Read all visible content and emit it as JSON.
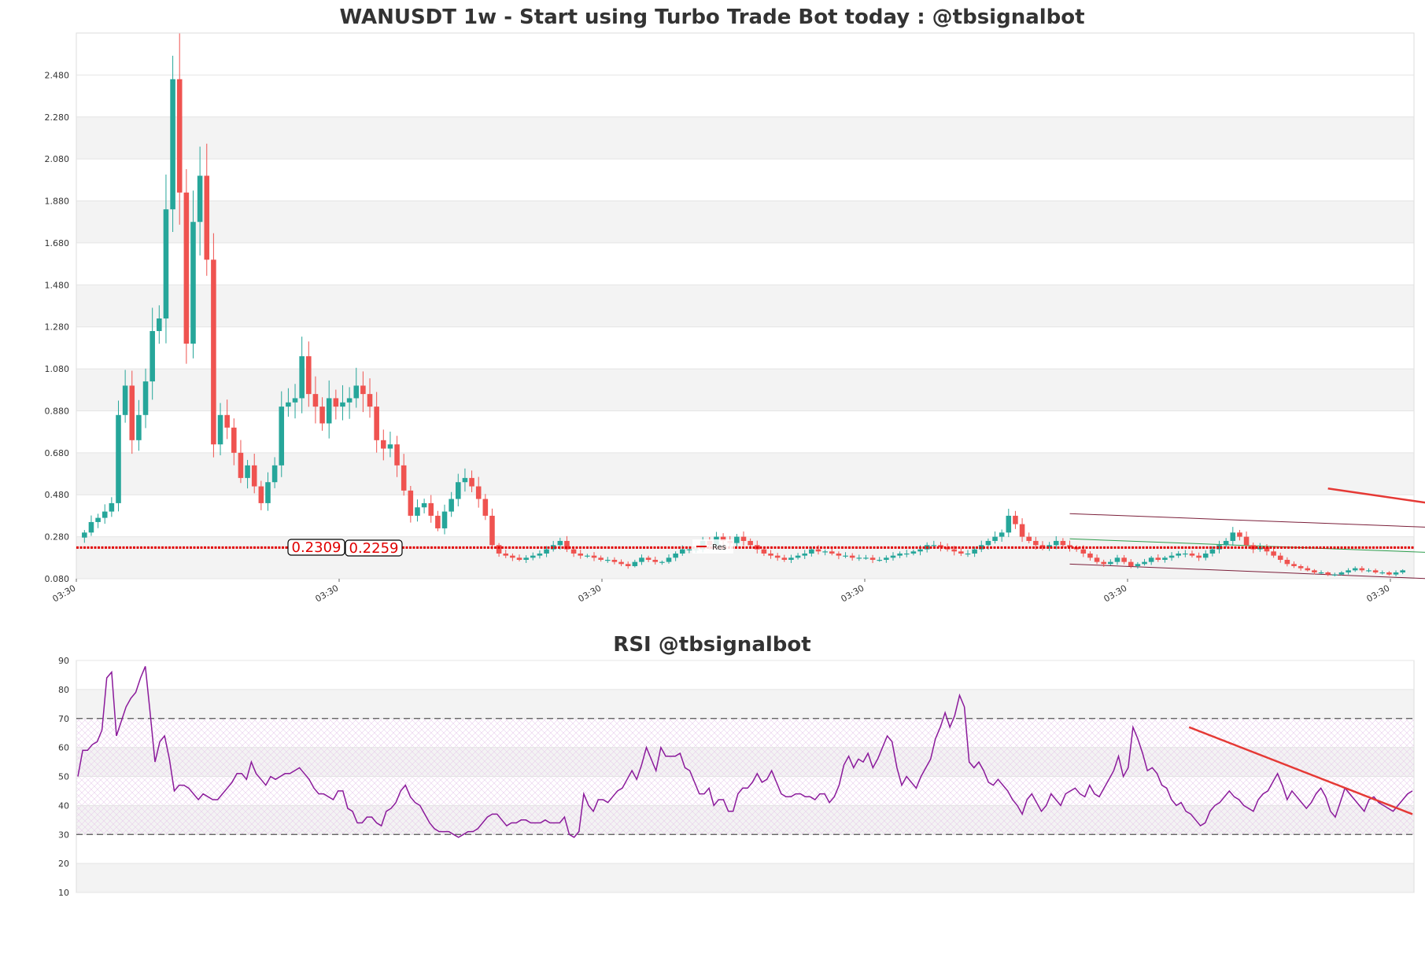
{
  "price_chart": {
    "title": "WANUSDT 1w - Start using Turbo Trade Bot today : @tbsignalbot",
    "y_ticks": [
      "2.480",
      "2.280",
      "2.080",
      "1.880",
      "1.680",
      "1.480",
      "1.280",
      "1.080",
      "0.880",
      "0.680",
      "0.480",
      "0.280",
      "0.080"
    ],
    "x_ticks": [
      "03:30",
      "03:30",
      "03:30",
      "03:30",
      "03:30",
      "03:30"
    ],
    "price_tags": [
      "0.2309",
      "0.2259"
    ],
    "legend_label": "Res",
    "colors": {
      "up": "#26a69a",
      "down": "#ef5350",
      "resistance": "#e00000",
      "channel": "#7b1f3a",
      "mid": "#2e9e4f",
      "trend": "#e53935"
    }
  },
  "rsi_chart": {
    "title": "RSI @tbsignalbot",
    "y_ticks": [
      "90",
      "80",
      "70",
      "60",
      "50",
      "40",
      "30",
      "20",
      "10"
    ],
    "overbought": 70,
    "oversold": 30,
    "colors": {
      "line": "#8b1a9b",
      "trend": "#e53935",
      "guide": "#555555"
    }
  },
  "chart_data": [
    {
      "type": "candlestick",
      "title": "WANUSDT 1w - Start using Turbo Trade Bot today : @tbsignalbot",
      "ylim": [
        0.08,
        2.68
      ],
      "y_ticks": [
        0.08,
        0.28,
        0.48,
        0.68,
        0.88,
        1.08,
        1.28,
        1.48,
        1.68,
        1.88,
        2.08,
        2.28,
        2.48
      ],
      "resistance_levels": [
        0.2309,
        0.2259
      ],
      "legend": [
        "Res"
      ],
      "close": [
        0.3,
        0.35,
        0.37,
        0.4,
        0.44,
        0.86,
        1.0,
        0.74,
        0.86,
        1.02,
        1.26,
        1.32,
        1.84,
        2.46,
        1.92,
        1.2,
        1.78,
        2.0,
        1.6,
        0.72,
        0.86,
        0.8,
        0.68,
        0.56,
        0.62,
        0.52,
        0.44,
        0.54,
        0.62,
        0.9,
        0.92,
        0.94,
        1.14,
        0.96,
        0.9,
        0.82,
        0.94,
        0.9,
        0.92,
        0.94,
        1.0,
        0.96,
        0.9,
        0.74,
        0.7,
        0.72,
        0.62,
        0.5,
        0.38,
        0.42,
        0.44,
        0.38,
        0.32,
        0.4,
        0.46,
        0.54,
        0.56,
        0.52,
        0.46,
        0.38,
        0.24,
        0.2,
        0.19,
        0.18,
        0.17,
        0.18,
        0.19,
        0.2,
        0.22,
        0.24,
        0.26,
        0.22,
        0.2,
        0.19,
        0.19,
        0.18,
        0.17,
        0.17,
        0.16,
        0.15,
        0.14,
        0.16,
        0.18,
        0.17,
        0.16,
        0.16,
        0.18,
        0.2,
        0.22,
        0.22,
        0.22,
        0.26,
        0.24,
        0.28,
        0.26,
        0.25,
        0.28,
        0.26,
        0.24,
        0.22,
        0.2,
        0.19,
        0.18,
        0.17,
        0.18,
        0.19,
        0.2,
        0.22,
        0.21,
        0.21,
        0.2,
        0.19,
        0.19,
        0.18,
        0.18,
        0.18,
        0.17,
        0.17,
        0.18,
        0.19,
        0.2,
        0.2,
        0.21,
        0.22,
        0.24,
        0.24,
        0.23,
        0.22,
        0.21,
        0.2,
        0.2,
        0.22,
        0.24,
        0.26,
        0.28,
        0.3,
        0.38,
        0.34,
        0.28,
        0.26,
        0.24,
        0.23,
        0.24,
        0.26,
        0.24,
        0.23,
        0.22,
        0.2,
        0.18,
        0.16,
        0.15,
        0.16,
        0.18,
        0.16,
        0.14,
        0.15,
        0.16,
        0.18,
        0.17,
        0.18,
        0.19,
        0.2,
        0.2,
        0.19,
        0.18,
        0.2,
        0.22,
        0.24,
        0.26,
        0.3,
        0.28,
        0.24,
        0.22,
        0.23,
        0.21,
        0.19,
        0.17,
        0.15,
        0.14,
        0.13,
        0.12,
        0.11,
        0.11,
        0.1,
        0.1,
        0.11,
        0.12,
        0.13,
        0.12,
        0.12,
        0.11,
        0.11,
        0.1,
        0.11,
        0.12
      ],
      "overlays": {
        "channel_upper": [
          [
            145,
            0.39
          ],
          [
            251,
            0.26
          ]
        ],
        "channel_mid": [
          [
            145,
            0.27
          ],
          [
            251,
            0.14
          ]
        ],
        "channel_lower": [
          [
            145,
            0.15
          ],
          [
            251,
            0.01
          ]
        ],
        "trend_line": [
          [
            183,
            0.51
          ],
          [
            251,
            0.19
          ]
        ]
      }
    },
    {
      "type": "line",
      "title": "RSI @tbsignalbot",
      "ylim": [
        10,
        90
      ],
      "y_ticks": [
        10,
        20,
        30,
        40,
        50,
        60,
        70,
        80,
        90
      ],
      "reference_lines": [
        30,
        70
      ],
      "series": [
        {
          "values": [
            50,
            59,
            59,
            61,
            62,
            66,
            84,
            86,
            64,
            69,
            74,
            77,
            79,
            84,
            88,
            72,
            55,
            62,
            64,
            56,
            45,
            47,
            47,
            46,
            44,
            42,
            44,
            43,
            42,
            42,
            44,
            46,
            48,
            51,
            51,
            49,
            55,
            51,
            49,
            47,
            50,
            49,
            50,
            51,
            51,
            52,
            53,
            51,
            49,
            46,
            44,
            44,
            43,
            42,
            45,
            45,
            39,
            38,
            34,
            34,
            36,
            36,
            34,
            33,
            38,
            39,
            41,
            45,
            47,
            43,
            41,
            40,
            37,
            34,
            32,
            31,
            31,
            31,
            30,
            29,
            30,
            31,
            31,
            32,
            34,
            36,
            37,
            37,
            35,
            33,
            34,
            34,
            35,
            35,
            34,
            34,
            34,
            35,
            34,
            34,
            34,
            36,
            30,
            29,
            31,
            44,
            40,
            38,
            42,
            42,
            41,
            43,
            45,
            46,
            49,
            52,
            49,
            54,
            60,
            56,
            52,
            60,
            57,
            57,
            57,
            58,
            53,
            52,
            48,
            44,
            44,
            46,
            40,
            42,
            42,
            38,
            38,
            44,
            46,
            46,
            48,
            51,
            48,
            49,
            52,
            48,
            44,
            43,
            43,
            44,
            44,
            43,
            43,
            42,
            44,
            44,
            41,
            43,
            47,
            54,
            57,
            53,
            56,
            55,
            58,
            53,
            56,
            60,
            64,
            62,
            53,
            47,
            50,
            48,
            46,
            50,
            53,
            56,
            63,
            67,
            72,
            67,
            71,
            78,
            74,
            55,
            53,
            55,
            52,
            48,
            47,
            49,
            47,
            45,
            42,
            40,
            37,
            42,
            44,
            41,
            38,
            40,
            44,
            42,
            40,
            44,
            45,
            46,
            44,
            43,
            47,
            44,
            43,
            46,
            49,
            52,
            57,
            50,
            53,
            67,
            63,
            58,
            52,
            53,
            51,
            47,
            46,
            42,
            40,
            41,
            38,
            37,
            35,
            33,
            34,
            38,
            40,
            41,
            43,
            45,
            43,
            42,
            40,
            39,
            38,
            42,
            44,
            45,
            48,
            51,
            47,
            42,
            45,
            43,
            41,
            39,
            41,
            44,
            46,
            43,
            38,
            36,
            41,
            46,
            44,
            42,
            40,
            38,
            42,
            43,
            41,
            40,
            39,
            38,
            40,
            42,
            44,
            45
          ],
          "color": "#8b1a9b"
        }
      ],
      "trend_line": [
        [
          209,
          67
        ],
        [
          251,
          37
        ]
      ]
    }
  ]
}
